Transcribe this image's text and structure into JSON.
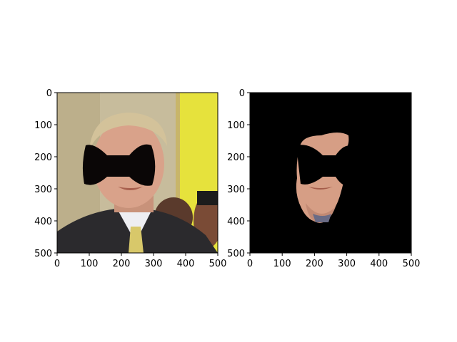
{
  "chart_data": [
    {
      "type": "image",
      "content": "portrait-photo",
      "overlay": "black-bowtie-mask",
      "xlim": [
        0,
        500
      ],
      "ylim": [
        500,
        0
      ],
      "xticks": [
        0,
        100,
        200,
        300,
        400,
        500
      ],
      "yticks": [
        0,
        100,
        200,
        300,
        400,
        500
      ],
      "xtick_labels": [
        "0",
        "100",
        "200",
        "300",
        "400",
        "500"
      ],
      "ytick_labels": [
        "0",
        "100",
        "200",
        "300",
        "400",
        "500"
      ],
      "title": "",
      "xlabel": "",
      "ylabel": ""
    },
    {
      "type": "image",
      "content": "segmented-face-on-black",
      "overlay": "black-bowtie-mask",
      "xlim": [
        0,
        500
      ],
      "ylim": [
        500,
        0
      ],
      "xticks": [
        0,
        100,
        200,
        300,
        400,
        500
      ],
      "yticks": [
        0,
        100,
        200,
        300,
        400,
        500
      ],
      "xtick_labels": [
        "0",
        "100",
        "200",
        "300",
        "400",
        "500"
      ],
      "ytick_labels": [
        "0",
        "100",
        "200",
        "300",
        "400",
        "500"
      ],
      "title": "",
      "xlabel": "",
      "ylabel": ""
    }
  ],
  "colors": {
    "wall": "#c9bd98",
    "yellow_wall": "#e6e23a",
    "suit": "#2a2a2c",
    "skin": "#d9a48a",
    "hair": "#cdbb93",
    "mask": "#000000"
  }
}
